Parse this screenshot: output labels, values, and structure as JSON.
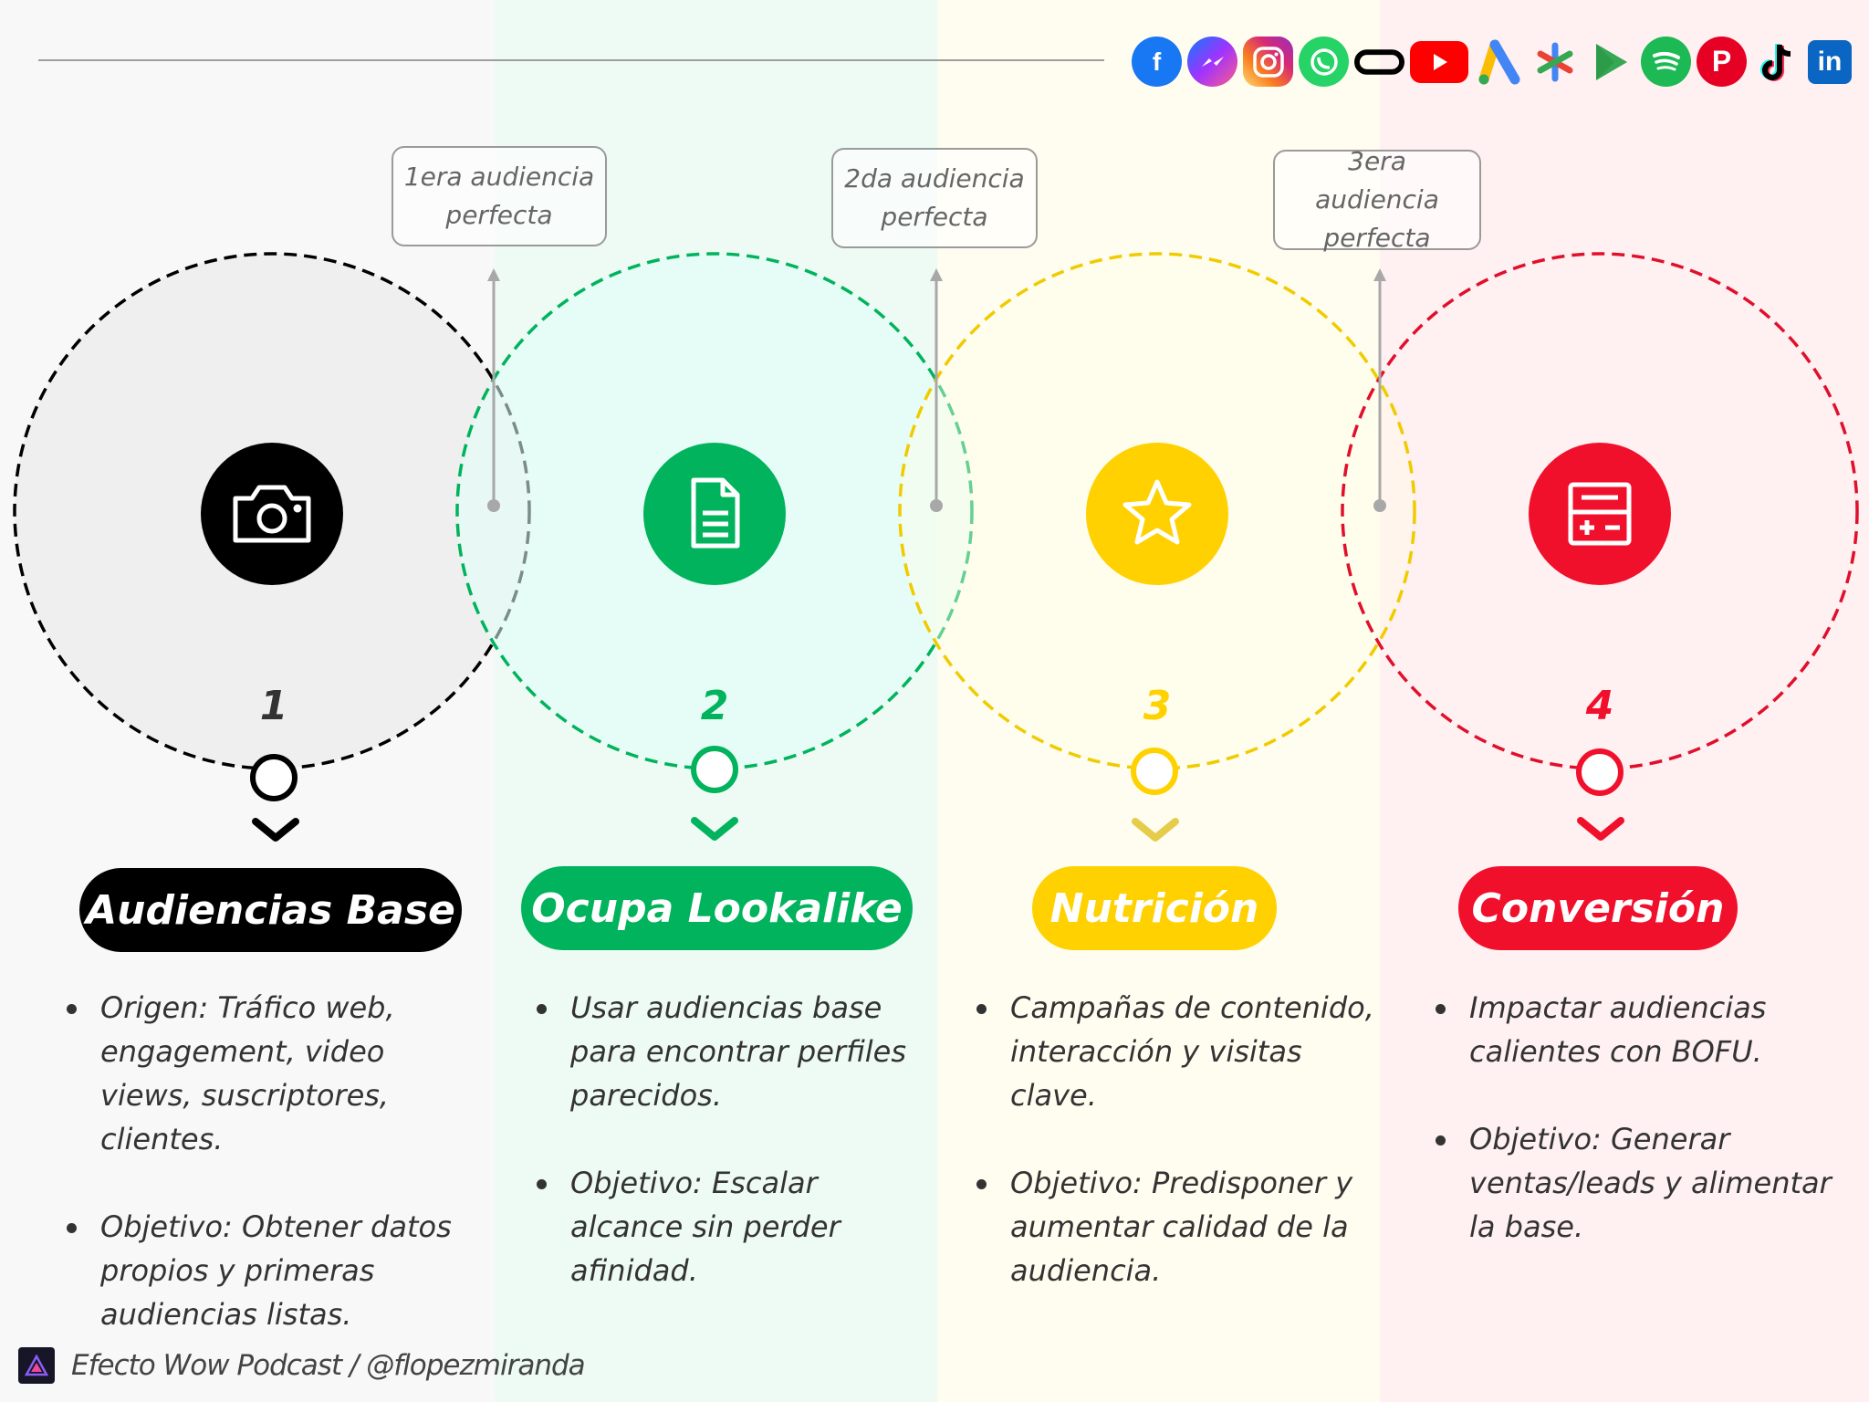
{
  "colors": {
    "black": "#000000",
    "green": "#00b35c",
    "yellow": "#ffd100",
    "red": "#f0102c"
  },
  "callouts": [
    "1era audiencia perfecta",
    "2da audiencia perfecta",
    "3era audiencia perfecta"
  ],
  "stages": [
    {
      "number": "1",
      "title": "Audiencias Base",
      "icon": "camera-icon",
      "color": "#000000",
      "bullets": [
        "Origen: Tráfico web, engagement, video views, suscriptores, clientes.",
        "Objetivo: Obtener datos propios y primeras audiencias listas."
      ]
    },
    {
      "number": "2",
      "title": "Ocupa Lookalike",
      "icon": "document-icon",
      "color": "#00b35c",
      "bullets": [
        "Usar audiencias base para encontrar perfiles parecidos.",
        "Objetivo: Escalar alcance sin perder afinidad."
      ]
    },
    {
      "number": "3",
      "title": "Nutrición",
      "icon": "star-icon",
      "color": "#ffd100",
      "bullets": [
        "Campañas de contenido, interacción y visitas clave.",
        "Objetivo: Predisponer y aumentar calidad de la audiencia."
      ]
    },
    {
      "number": "4",
      "title": "Conversión",
      "icon": "calculator-icon",
      "color": "#f0102c",
      "bullets": [
        "Impactar audiencias calientes con BOFU.",
        "Objetivo: Generar ventas/leads y alimentar la base."
      ]
    }
  ],
  "social_icons": [
    "facebook-icon",
    "messenger-icon",
    "instagram-icon",
    "whatsapp-icon",
    "threads-icon",
    "youtube-icon",
    "google-ads-icon",
    "asterisk-icon",
    "google-play-icon",
    "spotify-icon",
    "pinterest-icon",
    "tiktok-icon",
    "linkedin-icon"
  ],
  "footer": {
    "text": "Efecto Wow Podcast / @flopezmiranda"
  }
}
